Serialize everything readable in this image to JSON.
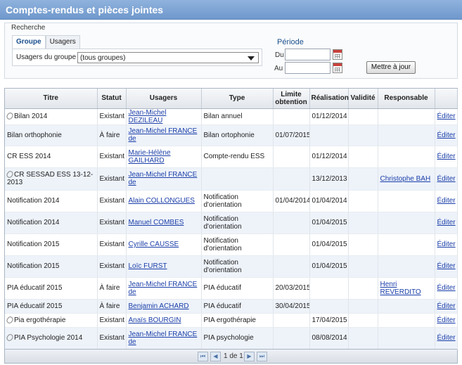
{
  "window": {
    "title": "Comptes-rendus et pièces jointes"
  },
  "search": {
    "legend": "Recherche",
    "tabs": [
      {
        "label": "Groupe",
        "active": true
      },
      {
        "label": "Usagers",
        "active": false
      }
    ],
    "group_label": "Usagers du groupe",
    "group_value": "(tous groupes)",
    "period_title": "Période",
    "from_label": "Du",
    "to_label": "Au",
    "from_value": "",
    "to_value": "",
    "update_button": "Mettre à jour"
  },
  "table": {
    "columns": [
      "Titre",
      "Statut",
      "Usagers",
      "Type",
      "Limite obtention",
      "Réalisation",
      "Validité",
      "Responsable",
      ""
    ],
    "edit_label": "Éditer",
    "rows": [
      {
        "attach": true,
        "titre": "Bilan 2014",
        "statut": "Existant",
        "usager": "Jean-Michel DEZILEAU",
        "type": "Bilan annuel",
        "limite": "",
        "realisation": "01/12/2014",
        "validite": "",
        "responsable": ""
      },
      {
        "attach": false,
        "titre": "Bilan orthophonie",
        "statut": "À faire",
        "usager": "Jean-Michel FRANCE de",
        "type": "Bilan ortophonie",
        "limite": "01/07/2015",
        "realisation": "",
        "validite": "",
        "responsable": ""
      },
      {
        "attach": false,
        "titre": "CR ESS 2014",
        "statut": "Existant",
        "usager": "Marie-Hélène GAILHARD",
        "type": "Compte-rendu ESS",
        "limite": "",
        "realisation": "01/12/2014",
        "validite": "",
        "responsable": ""
      },
      {
        "attach": true,
        "titre": "CR SESSAD ESS 13-12-2013",
        "statut": "Existant",
        "usager": "Jean-Michel FRANCE de",
        "type": "",
        "limite": "",
        "realisation": "13/12/2013",
        "validite": "",
        "responsable": "Christophe BAH"
      },
      {
        "attach": false,
        "titre": "Notification 2014",
        "statut": "Existant",
        "usager": "Alain COLLONGUES",
        "type": "Notification d'orientation",
        "limite": "01/04/2014",
        "realisation": "01/04/2014",
        "validite": "",
        "responsable": ""
      },
      {
        "attach": false,
        "titre": "Notification 2014",
        "statut": "Existant",
        "usager": "Manuel COMBES",
        "type": "Notification d'orientation",
        "limite": "",
        "realisation": "01/04/2015",
        "validite": "",
        "responsable": ""
      },
      {
        "attach": false,
        "titre": "Notification 2015",
        "statut": "Existant",
        "usager": "Cyrille CAUSSE",
        "type": "Notification d'orientation",
        "limite": "",
        "realisation": "01/04/2015",
        "validite": "",
        "responsable": ""
      },
      {
        "attach": false,
        "titre": "Notification 2015",
        "statut": "Existant",
        "usager": "Loïc FURST",
        "type": "Notification d'orientation",
        "limite": "",
        "realisation": "01/04/2015",
        "validite": "",
        "responsable": ""
      },
      {
        "attach": false,
        "titre": "PIA éducatif 2015",
        "statut": "À faire",
        "usager": "Jean-Michel FRANCE de",
        "type": "PIA éducatif",
        "limite": "20/03/2015",
        "realisation": "",
        "validite": "",
        "responsable": "Henri REVERDITO"
      },
      {
        "attach": false,
        "titre": "PIA éducatif 2015",
        "statut": "À faire",
        "usager": "Benjamin ACHARD",
        "type": "PIA éducatif",
        "limite": "30/04/2015",
        "realisation": "",
        "validite": "",
        "responsable": ""
      },
      {
        "attach": true,
        "titre": "Pia ergothérapie",
        "statut": "Existant",
        "usager": "Anaïs BOURGIN",
        "type": "PIA ergothérapie",
        "limite": "",
        "realisation": "17/04/2015",
        "validite": "",
        "responsable": ""
      },
      {
        "attach": true,
        "titre": "PIA Psychologie 2014",
        "statut": "Existant",
        "usager": "Jean-Michel FRANCE de",
        "type": "PIA psychologie",
        "limite": "",
        "realisation": "08/08/2014",
        "validite": "",
        "responsable": ""
      }
    ]
  },
  "pager": {
    "info": "1 de 1",
    "icons": [
      "first-page-icon",
      "prev-page-icon",
      "next-page-icon",
      "last-page-icon"
    ]
  },
  "colors": {
    "title_bar": "#7aa2d4",
    "link": "#1a3ea8",
    "alt_row": "#eef3fa"
  }
}
